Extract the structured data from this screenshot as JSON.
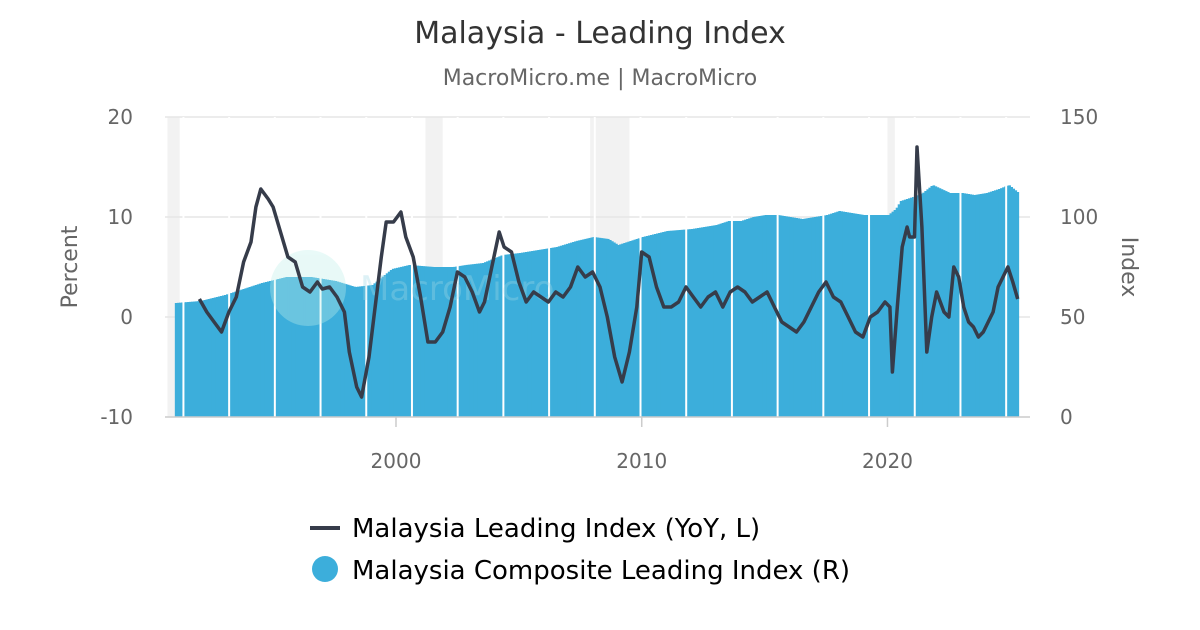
{
  "chart_data": {
    "type": "line+bar",
    "title": "Malaysia - Leading Index",
    "subtitle": "MacroMicro.me | MacroMicro",
    "watermark": "MacroMicro",
    "x_ticks": [
      "2000",
      "2010",
      "2020"
    ],
    "xlim": [
      1990.6,
      2025.8
    ],
    "left_axis": {
      "label": "Percent",
      "ticks": [
        "20",
        "10",
        "0",
        "-10"
      ],
      "ylim": [
        -10,
        20
      ]
    },
    "right_axis": {
      "label": "Index",
      "ticks": [
        "150",
        "100",
        "50",
        "0"
      ],
      "ylim": [
        0,
        150
      ]
    },
    "grid": true,
    "legend_position": "bottom",
    "recession_bands": [
      [
        1990.7,
        1991.2
      ],
      [
        2001.2,
        2001.9
      ],
      [
        2007.9,
        2009.5
      ],
      [
        2020.0,
        2020.3
      ]
    ],
    "series": [
      {
        "name": "Malaysia Leading Index (YoY, L)",
        "type": "line",
        "axis": "left",
        "color": "#363c4a",
        "points": [
          [
            1992.0,
            1.8
          ],
          [
            1992.3,
            0.5
          ],
          [
            1992.6,
            -0.5
          ],
          [
            1992.9,
            -1.5
          ],
          [
            1993.2,
            0.5
          ],
          [
            1993.5,
            2.0
          ],
          [
            1993.8,
            5.5
          ],
          [
            1994.1,
            7.5
          ],
          [
            1994.3,
            11.0
          ],
          [
            1994.5,
            12.8
          ],
          [
            1994.8,
            11.8
          ],
          [
            1995.0,
            11.0
          ],
          [
            1995.3,
            8.5
          ],
          [
            1995.6,
            6.0
          ],
          [
            1995.9,
            5.5
          ],
          [
            1996.2,
            3.0
          ],
          [
            1996.5,
            2.5
          ],
          [
            1996.8,
            3.5
          ],
          [
            1997.0,
            2.8
          ],
          [
            1997.3,
            3.0
          ],
          [
            1997.6,
            2.0
          ],
          [
            1997.9,
            0.5
          ],
          [
            1998.1,
            -3.5
          ],
          [
            1998.4,
            -7.0
          ],
          [
            1998.6,
            -8.0
          ],
          [
            1998.9,
            -4.0
          ],
          [
            1999.1,
            0.0
          ],
          [
            1999.4,
            6.0
          ],
          [
            1999.6,
            9.5
          ],
          [
            1999.9,
            9.5
          ],
          [
            2000.2,
            10.5
          ],
          [
            2000.4,
            8.0
          ],
          [
            2000.7,
            6.0
          ],
          [
            2001.0,
            2.0
          ],
          [
            2001.3,
            -2.5
          ],
          [
            2001.6,
            -2.5
          ],
          [
            2001.9,
            -1.5
          ],
          [
            2002.2,
            1.0
          ],
          [
            2002.5,
            4.5
          ],
          [
            2002.8,
            4.0
          ],
          [
            2003.1,
            2.5
          ],
          [
            2003.4,
            0.5
          ],
          [
            2003.6,
            1.5
          ],
          [
            2003.9,
            5.0
          ],
          [
            2004.2,
            8.5
          ],
          [
            2004.4,
            7.0
          ],
          [
            2004.7,
            6.5
          ],
          [
            2005.0,
            3.5
          ],
          [
            2005.3,
            1.5
          ],
          [
            2005.6,
            2.5
          ],
          [
            2005.9,
            2.0
          ],
          [
            2006.2,
            1.5
          ],
          [
            2006.5,
            2.5
          ],
          [
            2006.8,
            2.0
          ],
          [
            2007.1,
            3.0
          ],
          [
            2007.4,
            5.0
          ],
          [
            2007.7,
            4.0
          ],
          [
            2008.0,
            4.5
          ],
          [
            2008.3,
            3.0
          ],
          [
            2008.6,
            0.0
          ],
          [
            2008.9,
            -4.0
          ],
          [
            2009.2,
            -6.5
          ],
          [
            2009.5,
            -3.5
          ],
          [
            2009.8,
            1.0
          ],
          [
            2010.0,
            6.5
          ],
          [
            2010.3,
            6.0
          ],
          [
            2010.6,
            3.0
          ],
          [
            2010.9,
            1.0
          ],
          [
            2011.2,
            1.0
          ],
          [
            2011.5,
            1.5
          ],
          [
            2011.8,
            3.0
          ],
          [
            2012.1,
            2.0
          ],
          [
            2012.4,
            1.0
          ],
          [
            2012.7,
            2.0
          ],
          [
            2013.0,
            2.5
          ],
          [
            2013.3,
            1.0
          ],
          [
            2013.6,
            2.5
          ],
          [
            2013.9,
            3.0
          ],
          [
            2014.2,
            2.5
          ],
          [
            2014.5,
            1.5
          ],
          [
            2014.8,
            2.0
          ],
          [
            2015.1,
            2.5
          ],
          [
            2015.4,
            1.0
          ],
          [
            2015.7,
            -0.5
          ],
          [
            2016.0,
            -1.0
          ],
          [
            2016.3,
            -1.5
          ],
          [
            2016.6,
            -0.5
          ],
          [
            2016.9,
            1.0
          ],
          [
            2017.2,
            2.5
          ],
          [
            2017.5,
            3.5
          ],
          [
            2017.8,
            2.0
          ],
          [
            2018.1,
            1.5
          ],
          [
            2018.4,
            0.0
          ],
          [
            2018.7,
            -1.5
          ],
          [
            2019.0,
            -2.0
          ],
          [
            2019.3,
            0.0
          ],
          [
            2019.6,
            0.5
          ],
          [
            2019.9,
            1.5
          ],
          [
            2020.1,
            1.0
          ],
          [
            2020.2,
            -5.5
          ],
          [
            2020.4,
            1.0
          ],
          [
            2020.6,
            7.0
          ],
          [
            2020.8,
            9.0
          ],
          [
            2020.9,
            8.0
          ],
          [
            2021.1,
            8.0
          ],
          [
            2021.2,
            17.0
          ],
          [
            2021.4,
            9.0
          ],
          [
            2021.6,
            -3.5
          ],
          [
            2021.8,
            0.0
          ],
          [
            2022.0,
            2.5
          ],
          [
            2022.3,
            0.5
          ],
          [
            2022.5,
            0.0
          ],
          [
            2022.7,
            5.0
          ],
          [
            2022.9,
            4.0
          ],
          [
            2023.1,
            1.0
          ],
          [
            2023.3,
            -0.5
          ],
          [
            2023.5,
            -1.0
          ],
          [
            2023.7,
            -2.0
          ],
          [
            2023.9,
            -1.5
          ],
          [
            2024.1,
            -0.5
          ],
          [
            2024.3,
            0.5
          ],
          [
            2024.5,
            3.0
          ],
          [
            2024.7,
            4.0
          ],
          [
            2024.9,
            5.0
          ],
          [
            2025.1,
            3.5
          ],
          [
            2025.3,
            1.8
          ]
        ]
      },
      {
        "name": "Malaysia Composite Leading Index (R)",
        "type": "bar",
        "axis": "right",
        "color": "#3caedb",
        "points": [
          [
            1991.0,
            57
          ],
          [
            1992.0,
            58
          ],
          [
            1993.0,
            61
          ],
          [
            1993.5,
            63
          ],
          [
            1994.5,
            67
          ],
          [
            1995.5,
            70
          ],
          [
            1996.5,
            70
          ],
          [
            1997.5,
            68
          ],
          [
            1998.3,
            65
          ],
          [
            1999.0,
            66
          ],
          [
            1999.8,
            74
          ],
          [
            2000.5,
            76
          ],
          [
            2001.5,
            75
          ],
          [
            2002.3,
            75
          ],
          [
            2002.8,
            76
          ],
          [
            2003.5,
            77
          ],
          [
            2004.3,
            81
          ],
          [
            2005.0,
            82
          ],
          [
            2005.5,
            83
          ],
          [
            2006.5,
            85
          ],
          [
            2007.3,
            88
          ],
          [
            2008.0,
            90
          ],
          [
            2008.6,
            89
          ],
          [
            2009.0,
            86
          ],
          [
            2009.5,
            88
          ],
          [
            2010.0,
            90
          ],
          [
            2011.0,
            93
          ],
          [
            2012.0,
            94
          ],
          [
            2013.0,
            96
          ],
          [
            2013.5,
            98
          ],
          [
            2014.0,
            98
          ],
          [
            2014.5,
            100
          ],
          [
            2015.0,
            101
          ],
          [
            2015.5,
            101
          ],
          [
            2016.0,
            100
          ],
          [
            2016.5,
            99
          ],
          [
            2017.0,
            100
          ],
          [
            2017.5,
            101
          ],
          [
            2018.0,
            103
          ],
          [
            2018.5,
            102
          ],
          [
            2019.0,
            101
          ],
          [
            2019.5,
            101
          ],
          [
            2020.0,
            101
          ],
          [
            2020.3,
            104
          ],
          [
            2020.5,
            108
          ],
          [
            2021.0,
            110
          ],
          [
            2021.4,
            112
          ],
          [
            2021.8,
            116
          ],
          [
            2022.5,
            112
          ],
          [
            2023.0,
            112
          ],
          [
            2023.5,
            111
          ],
          [
            2024.0,
            112
          ],
          [
            2024.5,
            114
          ],
          [
            2024.9,
            116
          ],
          [
            2025.3,
            112
          ]
        ]
      }
    ]
  }
}
